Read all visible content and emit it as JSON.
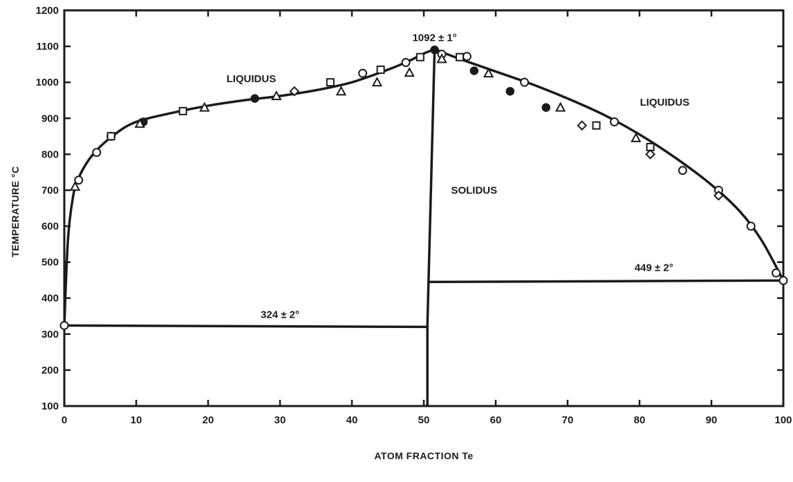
{
  "chart_data": {
    "type": "line",
    "title": "",
    "xlabel": "ATOM FRACTION Te",
    "ylabel": "TEMPERATURE °C",
    "xlim": [
      0,
      100
    ],
    "ylim": [
      100,
      1200
    ],
    "x_ticks": [
      "0",
      "10",
      "20",
      "30",
      "40",
      "50",
      "60",
      "70",
      "80",
      "90",
      "100"
    ],
    "y_ticks": [
      "100",
      "200",
      "300",
      "400",
      "500",
      "600",
      "700",
      "800",
      "900",
      "1000",
      "1100",
      "1200"
    ],
    "grid": false,
    "series": [
      {
        "kind": "liquidus-left",
        "color": "#1a1a1a",
        "points": [
          [
            0,
            324
          ],
          [
            0.5,
            560
          ],
          [
            1.2,
            680
          ],
          [
            2,
            735
          ],
          [
            4,
            800
          ],
          [
            7,
            855
          ],
          [
            10,
            890
          ],
          [
            15,
            915
          ],
          [
            20,
            935
          ],
          [
            25,
            950
          ],
          [
            30,
            962
          ],
          [
            35,
            978
          ],
          [
            40,
            1000
          ],
          [
            45,
            1035
          ],
          [
            48,
            1060
          ],
          [
            50,
            1080
          ],
          [
            51.5,
            1092
          ]
        ]
      },
      {
        "kind": "liquidus-right",
        "color": "#1a1a1a",
        "points": [
          [
            51.5,
            1092
          ],
          [
            55,
            1065
          ],
          [
            60,
            1030
          ],
          [
            65,
            995
          ],
          [
            70,
            955
          ],
          [
            75,
            910
          ],
          [
            80,
            855
          ],
          [
            85,
            790
          ],
          [
            90,
            715
          ],
          [
            94,
            640
          ],
          [
            97,
            560
          ],
          [
            100,
            449
          ]
        ]
      },
      {
        "kind": "solidus",
        "color": "#1a1a1a",
        "points": [
          [
            50.5,
            100
          ],
          [
            50.5,
            325
          ],
          [
            51.5,
            1092
          ]
        ]
      },
      {
        "kind": "eutectic-left",
        "color": "#1a1a1a",
        "points": [
          [
            0,
            324
          ],
          [
            50.5,
            320
          ]
        ]
      },
      {
        "kind": "eutectic-right",
        "color": "#1a1a1a",
        "points": [
          [
            50.8,
            445
          ],
          [
            100,
            449
          ]
        ]
      }
    ],
    "markers": {
      "open_circle": [
        [
          0,
          324
        ],
        [
          2,
          728
        ],
        [
          4.5,
          805
        ],
        [
          6.5,
          850
        ],
        [
          41.5,
          1025
        ],
        [
          47.5,
          1055
        ],
        [
          52.5,
          1078
        ],
        [
          56,
          1072
        ],
        [
          64,
          1000
        ],
        [
          76.5,
          890
        ],
        [
          86,
          755
        ],
        [
          91,
          700
        ],
        [
          95.5,
          600
        ],
        [
          99,
          470
        ],
        [
          100,
          449
        ]
      ],
      "filled_circle": [
        [
          11,
          890
        ],
        [
          26.5,
          955
        ],
        [
          51.5,
          1090
        ],
        [
          57,
          1032
        ],
        [
          62,
          975
        ],
        [
          67,
          930
        ]
      ],
      "triangle": [
        [
          1.5,
          710
        ],
        [
          10.5,
          885
        ],
        [
          19.5,
          930
        ],
        [
          29.5,
          962
        ],
        [
          38.5,
          975
        ],
        [
          43.5,
          1000
        ],
        [
          48,
          1027
        ],
        [
          52.5,
          1065
        ],
        [
          59,
          1025
        ],
        [
          69,
          930
        ],
        [
          79.5,
          845
        ]
      ],
      "square": [
        [
          6.5,
          850
        ],
        [
          16.5,
          920
        ],
        [
          37,
          1000
        ],
        [
          44,
          1035
        ],
        [
          49.5,
          1070
        ],
        [
          55,
          1070
        ],
        [
          74,
          880
        ],
        [
          81.5,
          820
        ]
      ],
      "diamond": [
        [
          32,
          975
        ],
        [
          72,
          880
        ],
        [
          81.5,
          800
        ],
        [
          91,
          685
        ]
      ]
    },
    "annotations": [
      {
        "text": "LIQUIDUS",
        "x": 26,
        "y": 1000
      },
      {
        "text": "1092 ± 1°",
        "x": 51.5,
        "y": 1115
      },
      {
        "text": "LIQUIDUS",
        "x": 83.5,
        "y": 935
      },
      {
        "text": "SOLIDUS",
        "x": 57,
        "y": 690
      },
      {
        "text": "324 ± 2°",
        "x": 30,
        "y": 345
      },
      {
        "text": "449 ± 2°",
        "x": 82,
        "y": 475
      }
    ]
  }
}
